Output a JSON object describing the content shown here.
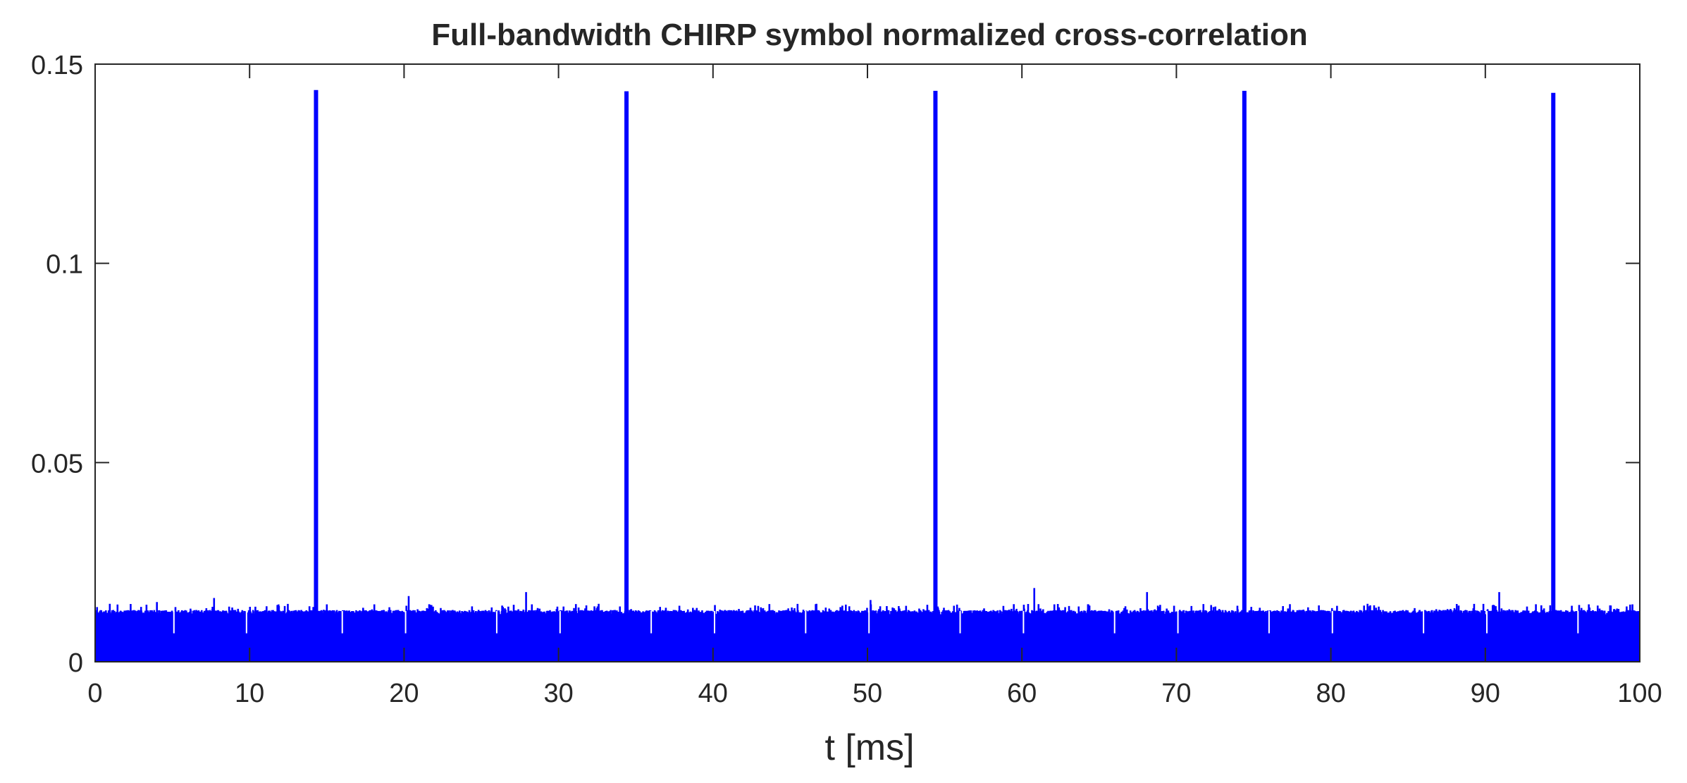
{
  "chart_data": {
    "type": "line",
    "title": "Full-bandwidth CHIRP symbol normalized cross-correlation",
    "xlabel": "t [ms]",
    "ylabel": "",
    "xlim": [
      0,
      100
    ],
    "ylim": [
      0,
      0.15
    ],
    "xticks": [
      0,
      10,
      20,
      30,
      40,
      50,
      60,
      70,
      80,
      90,
      100
    ],
    "xtick_labels": [
      "0",
      "10",
      "20",
      "30",
      "40",
      "50",
      "60",
      "70",
      "80",
      "90",
      "100"
    ],
    "yticks": [
      0,
      0.05,
      0.1,
      0.15
    ],
    "ytick_labels": [
      "0",
      "0.05",
      "0.1",
      "0.15"
    ],
    "grid": false,
    "line_color": "#0000ff",
    "noise_floor": {
      "x_range": [
        0,
        100
      ],
      "typical_peak": 0.013,
      "typical_range": [
        0,
        0.013
      ],
      "occasional_spikes": [
        {
          "x": 4,
          "y": 0.015
        },
        {
          "x": 7.7,
          "y": 0.016
        },
        {
          "x": 20.3,
          "y": 0.0165
        },
        {
          "x": 27.9,
          "y": 0.0175
        },
        {
          "x": 50.2,
          "y": 0.0155
        },
        {
          "x": 60.8,
          "y": 0.0185
        },
        {
          "x": 68.1,
          "y": 0.0175
        },
        {
          "x": 90.9,
          "y": 0.0175
        }
      ],
      "periodic_dips": [
        5.1,
        9.8,
        16.0,
        20.1,
        26.0,
        30.1,
        36.0,
        40.1,
        46.0,
        50.1,
        56.0,
        60.1,
        66.0,
        70.1,
        76.0,
        80.1,
        86.0,
        90.1,
        96.0
      ]
    },
    "series": [
      {
        "values_peaks": [
          {
            "x": 14.3,
            "y": 0.1435
          },
          {
            "x": 34.4,
            "y": 0.1432
          },
          {
            "x": 54.4,
            "y": 0.1433
          },
          {
            "x": 74.4,
            "y": 0.1433
          },
          {
            "x": 94.4,
            "y": 0.1428
          }
        ]
      }
    ]
  }
}
